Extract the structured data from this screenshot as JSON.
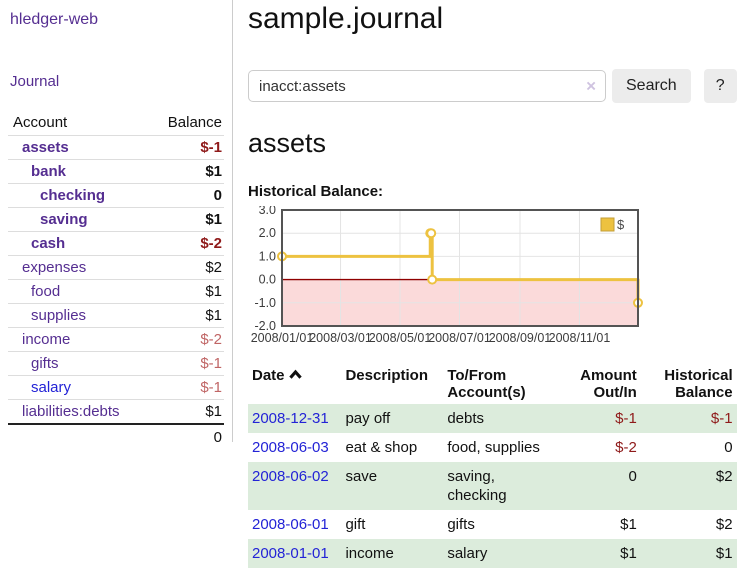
{
  "colors": {
    "link_purple": "#552e91",
    "link_blue": "#2323d6",
    "negative_strong": "#8f1a1a",
    "negative_soft": "#c06565",
    "row_stripe_green": "#dcecdc",
    "series_gold": "#edc240",
    "chart_negative_region": "#fbdada",
    "chart_zero_line": "#8f0000",
    "button_gray": "#ececec"
  },
  "app": {
    "title": "hledger-web"
  },
  "sidebar": {
    "nav_journal": "Journal",
    "accounts": {
      "header_account": "Account",
      "header_balance": "Balance",
      "rows": [
        {
          "name": "assets",
          "balance": "$-1",
          "level": 1,
          "bold": true,
          "negative": "strong"
        },
        {
          "name": "bank",
          "balance": "$1",
          "level": 2,
          "bold": true,
          "negative": "none"
        },
        {
          "name": "checking",
          "balance": "0",
          "level": 3,
          "bold": true,
          "negative": "none"
        },
        {
          "name": "saving",
          "balance": "$1",
          "level": 3,
          "bold": true,
          "negative": "none"
        },
        {
          "name": "cash",
          "balance": "$-2",
          "level": 2,
          "bold": true,
          "negative": "strong"
        },
        {
          "name": "expenses",
          "balance": "$2",
          "level": 1,
          "bold": false,
          "negative": "none"
        },
        {
          "name": "food",
          "balance": "$1",
          "level": 2,
          "bold": false,
          "negative": "none"
        },
        {
          "name": "supplies",
          "balance": "$1",
          "level": 2,
          "bold": false,
          "negative": "none"
        },
        {
          "name": "income",
          "balance": "$-2",
          "level": 1,
          "bold": false,
          "negative": "soft"
        },
        {
          "name": "gifts",
          "balance": "$-1",
          "level": 2,
          "bold": false,
          "negative": "soft"
        },
        {
          "name": "salary",
          "balance": "$-1",
          "level": 2,
          "bold": false,
          "negative": "soft",
          "link_color": "blue"
        },
        {
          "name": "liabilities:debts",
          "balance": "$1",
          "level": 1,
          "bold": false,
          "negative": "none"
        }
      ],
      "total": "0"
    }
  },
  "main": {
    "title": "sample.journal",
    "search": {
      "value": "inacct:assets",
      "clear_icon": "×",
      "button_label": "Search",
      "help_label": "?"
    },
    "account_heading": "assets",
    "chart_label": "Historical Balance:"
  },
  "chart_data": {
    "type": "line",
    "title": "Historical Balance",
    "x_min": "2008-01-01",
    "x_max": "2008-12-31",
    "ylim": [
      -2,
      3
    ],
    "y_ticks": [
      "3.0",
      "2.0",
      "1.0",
      "0.0",
      "-1.0",
      "-2.0"
    ],
    "x_ticks": [
      "2008/01/01",
      "2008/03/01",
      "2008/05/01",
      "2008/07/01",
      "2008/09/01",
      "2008/11/01"
    ],
    "grid": true,
    "legend": {
      "label": "$",
      "position": "top-right"
    },
    "series": [
      {
        "name": "$",
        "step": true,
        "points": [
          {
            "date": "2008-01-01",
            "value": 1
          },
          {
            "date": "2008-06-01",
            "value": 2
          },
          {
            "date": "2008-06-02",
            "value": 2
          },
          {
            "date": "2008-06-03",
            "value": 0
          },
          {
            "date": "2008-12-31",
            "value": -1
          }
        ]
      }
    ]
  },
  "transactions": {
    "headers": [
      {
        "label": "Date",
        "align": "left",
        "sortable": true
      },
      {
        "label": "Description",
        "align": "left"
      },
      {
        "label": "To/From Account(s)",
        "align": "left"
      },
      {
        "label": "Amount Out/In",
        "align": "right"
      },
      {
        "label": "Historical Balance",
        "align": "right"
      }
    ],
    "rows": [
      {
        "date": "2008-12-31",
        "description": "pay off",
        "accounts": "debts",
        "amount": "$-1",
        "amount_negative": true,
        "balance": "$-1",
        "balance_negative": true
      },
      {
        "date": "2008-06-03",
        "description": "eat & shop",
        "accounts": "food, supplies",
        "amount": "$-2",
        "amount_negative": true,
        "balance": "0",
        "balance_negative": false
      },
      {
        "date": "2008-06-02",
        "description": "save",
        "accounts": "saving, checking",
        "amount": "0",
        "amount_negative": false,
        "balance": "$2",
        "balance_negative": false
      },
      {
        "date": "2008-06-01",
        "description": "gift",
        "accounts": "gifts",
        "amount": "$1",
        "amount_negative": false,
        "balance": "$2",
        "balance_negative": false
      },
      {
        "date": "2008-01-01",
        "description": "income",
        "accounts": "salary",
        "amount": "$1",
        "amount_negative": false,
        "balance": "$1",
        "balance_negative": false
      }
    ]
  }
}
